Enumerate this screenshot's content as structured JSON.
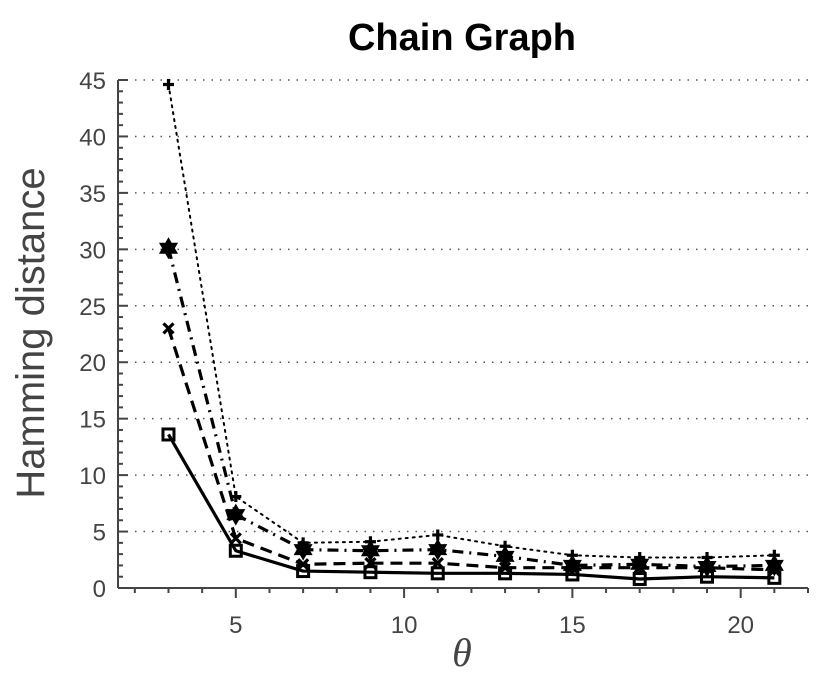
{
  "chart_data": {
    "type": "line",
    "title": "Chain Graph",
    "xlabel": "θ",
    "ylabel": "Hamming distance",
    "xlim": [
      1.5,
      22
    ],
    "ylim": [
      0,
      45
    ],
    "x_ticks": [
      5,
      10,
      15,
      20
    ],
    "y_ticks": [
      0,
      5,
      10,
      15,
      20,
      25,
      30,
      35,
      40,
      45
    ],
    "grid": "horizontal dotted",
    "x": [
      3,
      5,
      7,
      9,
      11,
      13,
      15,
      17,
      19,
      21
    ],
    "series": [
      {
        "style": "solid",
        "marker": "square",
        "values": [
          13.6,
          3.3,
          1.5,
          1.4,
          1.3,
          1.3,
          1.2,
          0.8,
          1.0,
          0.9
        ]
      },
      {
        "style": "dashed",
        "marker": "x",
        "values": [
          23.0,
          4.4,
          2.1,
          2.2,
          2.2,
          1.8,
          1.8,
          1.8,
          1.8,
          1.6
        ]
      },
      {
        "style": "dash-dot",
        "marker": "hexagram",
        "values": [
          30.1,
          6.5,
          3.4,
          3.3,
          3.4,
          2.8,
          2.0,
          2.1,
          1.9,
          2.0
        ]
      },
      {
        "style": "dotted",
        "marker": "plus",
        "values": [
          44.6,
          8.1,
          4.0,
          4.1,
          4.7,
          3.7,
          2.9,
          2.7,
          2.7,
          2.9
        ]
      }
    ]
  }
}
